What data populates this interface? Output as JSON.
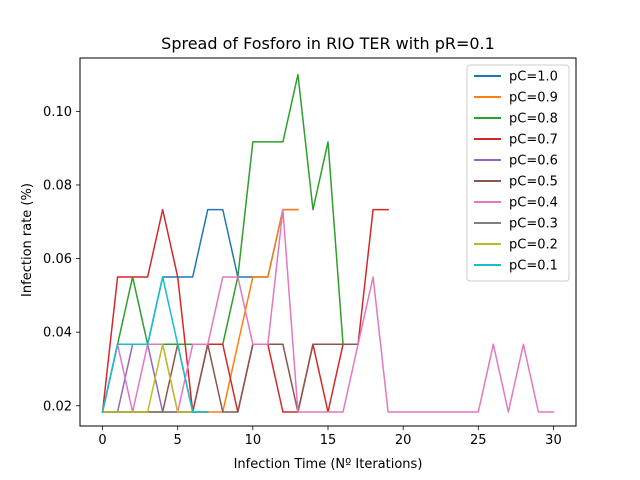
{
  "chart_data": {
    "type": "line",
    "title": "Spread of Fosforo in RIO TER with pR=0.1",
    "xlabel": "Infection Time (Nº Iterations)",
    "ylabel": "Infection rate (%)",
    "xlim": [
      -1.5,
      31.5
    ],
    "ylim": [
      0.0145,
      0.1145
    ],
    "xticks": [
      0,
      5,
      10,
      15,
      20,
      25,
      30
    ],
    "yticks": [
      0.02,
      0.04,
      0.06,
      0.08,
      0.1
    ],
    "ytick_labels": [
      "0.02",
      "0.04",
      "0.06",
      "0.08",
      "0.10"
    ],
    "grid": false,
    "legend_position": "top-right",
    "series": [
      {
        "name": "pC=1.0",
        "color": "#1f77b4",
        "x": [
          0,
          1,
          2,
          3,
          4,
          5,
          6,
          7,
          8,
          9,
          10,
          11,
          12,
          13
        ],
        "y": [
          0.0183,
          0.0367,
          0.0367,
          0.0367,
          0.055,
          0.055,
          0.055,
          0.0733,
          0.0733,
          0.055,
          0.055,
          0.055,
          0.0733,
          0.0733
        ]
      },
      {
        "name": "pC=0.9",
        "color": "#ff7f0e",
        "x": [
          0,
          1,
          2,
          3,
          4,
          5,
          6,
          7,
          8,
          9,
          10,
          11,
          12,
          13
        ],
        "y": [
          0.0183,
          0.0183,
          0.0183,
          0.0183,
          0.0183,
          0.0183,
          0.0183,
          0.0183,
          0.0183,
          0.0367,
          0.055,
          0.055,
          0.0733,
          0.0733
        ]
      },
      {
        "name": "pC=0.8",
        "color": "#2ca02c",
        "x": [
          0,
          1,
          2,
          3,
          4,
          5,
          6,
          7,
          8,
          9,
          10,
          11,
          12,
          13,
          14,
          15,
          16
        ],
        "y": [
          0.0183,
          0.0367,
          0.055,
          0.0367,
          0.0367,
          0.0367,
          0.0367,
          0.0367,
          0.0367,
          0.055,
          0.0917,
          0.0917,
          0.0917,
          0.11,
          0.0733,
          0.0917,
          0.0367
        ]
      },
      {
        "name": "pC=0.7",
        "color": "#d62728",
        "x": [
          0,
          1,
          2,
          3,
          4,
          5,
          6,
          7,
          8,
          9,
          10,
          11,
          12,
          13,
          14,
          15,
          16,
          17,
          18,
          19
        ],
        "y": [
          0.0183,
          0.055,
          0.055,
          0.055,
          0.0733,
          0.055,
          0.0183,
          0.0367,
          0.0367,
          0.0183,
          0.0367,
          0.0367,
          0.0183,
          0.0183,
          0.0367,
          0.0183,
          0.0367,
          0.0367,
          0.0733,
          0.0733
        ]
      },
      {
        "name": "pC=0.6",
        "color": "#9467bd",
        "x": [
          0,
          1,
          2,
          3,
          4,
          5,
          6,
          7
        ],
        "y": [
          0.0183,
          0.0183,
          0.0367,
          0.0367,
          0.0183,
          0.0183,
          0.0183,
          0.0183
        ]
      },
      {
        "name": "pC=0.5",
        "color": "#8c564b",
        "x": [
          0,
          1,
          2,
          3,
          4,
          5,
          6,
          7,
          8,
          9,
          10,
          11,
          12,
          13,
          14,
          15,
          16,
          17
        ],
        "y": [
          0.0183,
          0.0183,
          0.0183,
          0.0183,
          0.0183,
          0.0367,
          0.0183,
          0.0367,
          0.0183,
          0.0183,
          0.0367,
          0.0367,
          0.0367,
          0.0183,
          0.0367,
          0.0367,
          0.0367,
          0.0367
        ]
      },
      {
        "name": "pC=0.4",
        "color": "#e377c2",
        "x": [
          0,
          1,
          2,
          3,
          4,
          5,
          6,
          7,
          8,
          9,
          10,
          11,
          12,
          13,
          14,
          15,
          16,
          17,
          18,
          19,
          20,
          21,
          22,
          23,
          24,
          25,
          26,
          27,
          28,
          29,
          30
        ],
        "y": [
          0.0183,
          0.0367,
          0.0183,
          0.0367,
          0.0367,
          0.0183,
          0.0367,
          0.0367,
          0.055,
          0.055,
          0.0367,
          0.0367,
          0.0733,
          0.0183,
          0.0183,
          0.0183,
          0.0183,
          0.0367,
          0.055,
          0.0183,
          0.0183,
          0.0183,
          0.0183,
          0.0183,
          0.0183,
          0.0183,
          0.0367,
          0.0183,
          0.0367,
          0.0183,
          0.0183
        ]
      },
      {
        "name": "pC=0.3",
        "color": "#7f7f7f",
        "x": [
          0,
          1,
          2,
          3,
          4,
          5,
          6,
          7
        ],
        "y": [
          0.0183,
          0.0183,
          0.0183,
          0.0183,
          0.0183,
          0.0183,
          0.0183,
          0.0183
        ]
      },
      {
        "name": "pC=0.2",
        "color": "#bcbd22",
        "x": [
          0,
          1,
          2,
          3,
          4,
          5,
          6,
          7
        ],
        "y": [
          0.0183,
          0.0183,
          0.0183,
          0.0183,
          0.0367,
          0.0183,
          0.0183,
          0.0183
        ]
      },
      {
        "name": "pC=0.1",
        "color": "#17becf",
        "x": [
          0,
          1,
          2,
          3,
          4,
          5,
          6,
          7
        ],
        "y": [
          0.0183,
          0.0367,
          0.0367,
          0.0367,
          0.055,
          0.0367,
          0.0183,
          0.0183
        ]
      }
    ]
  }
}
